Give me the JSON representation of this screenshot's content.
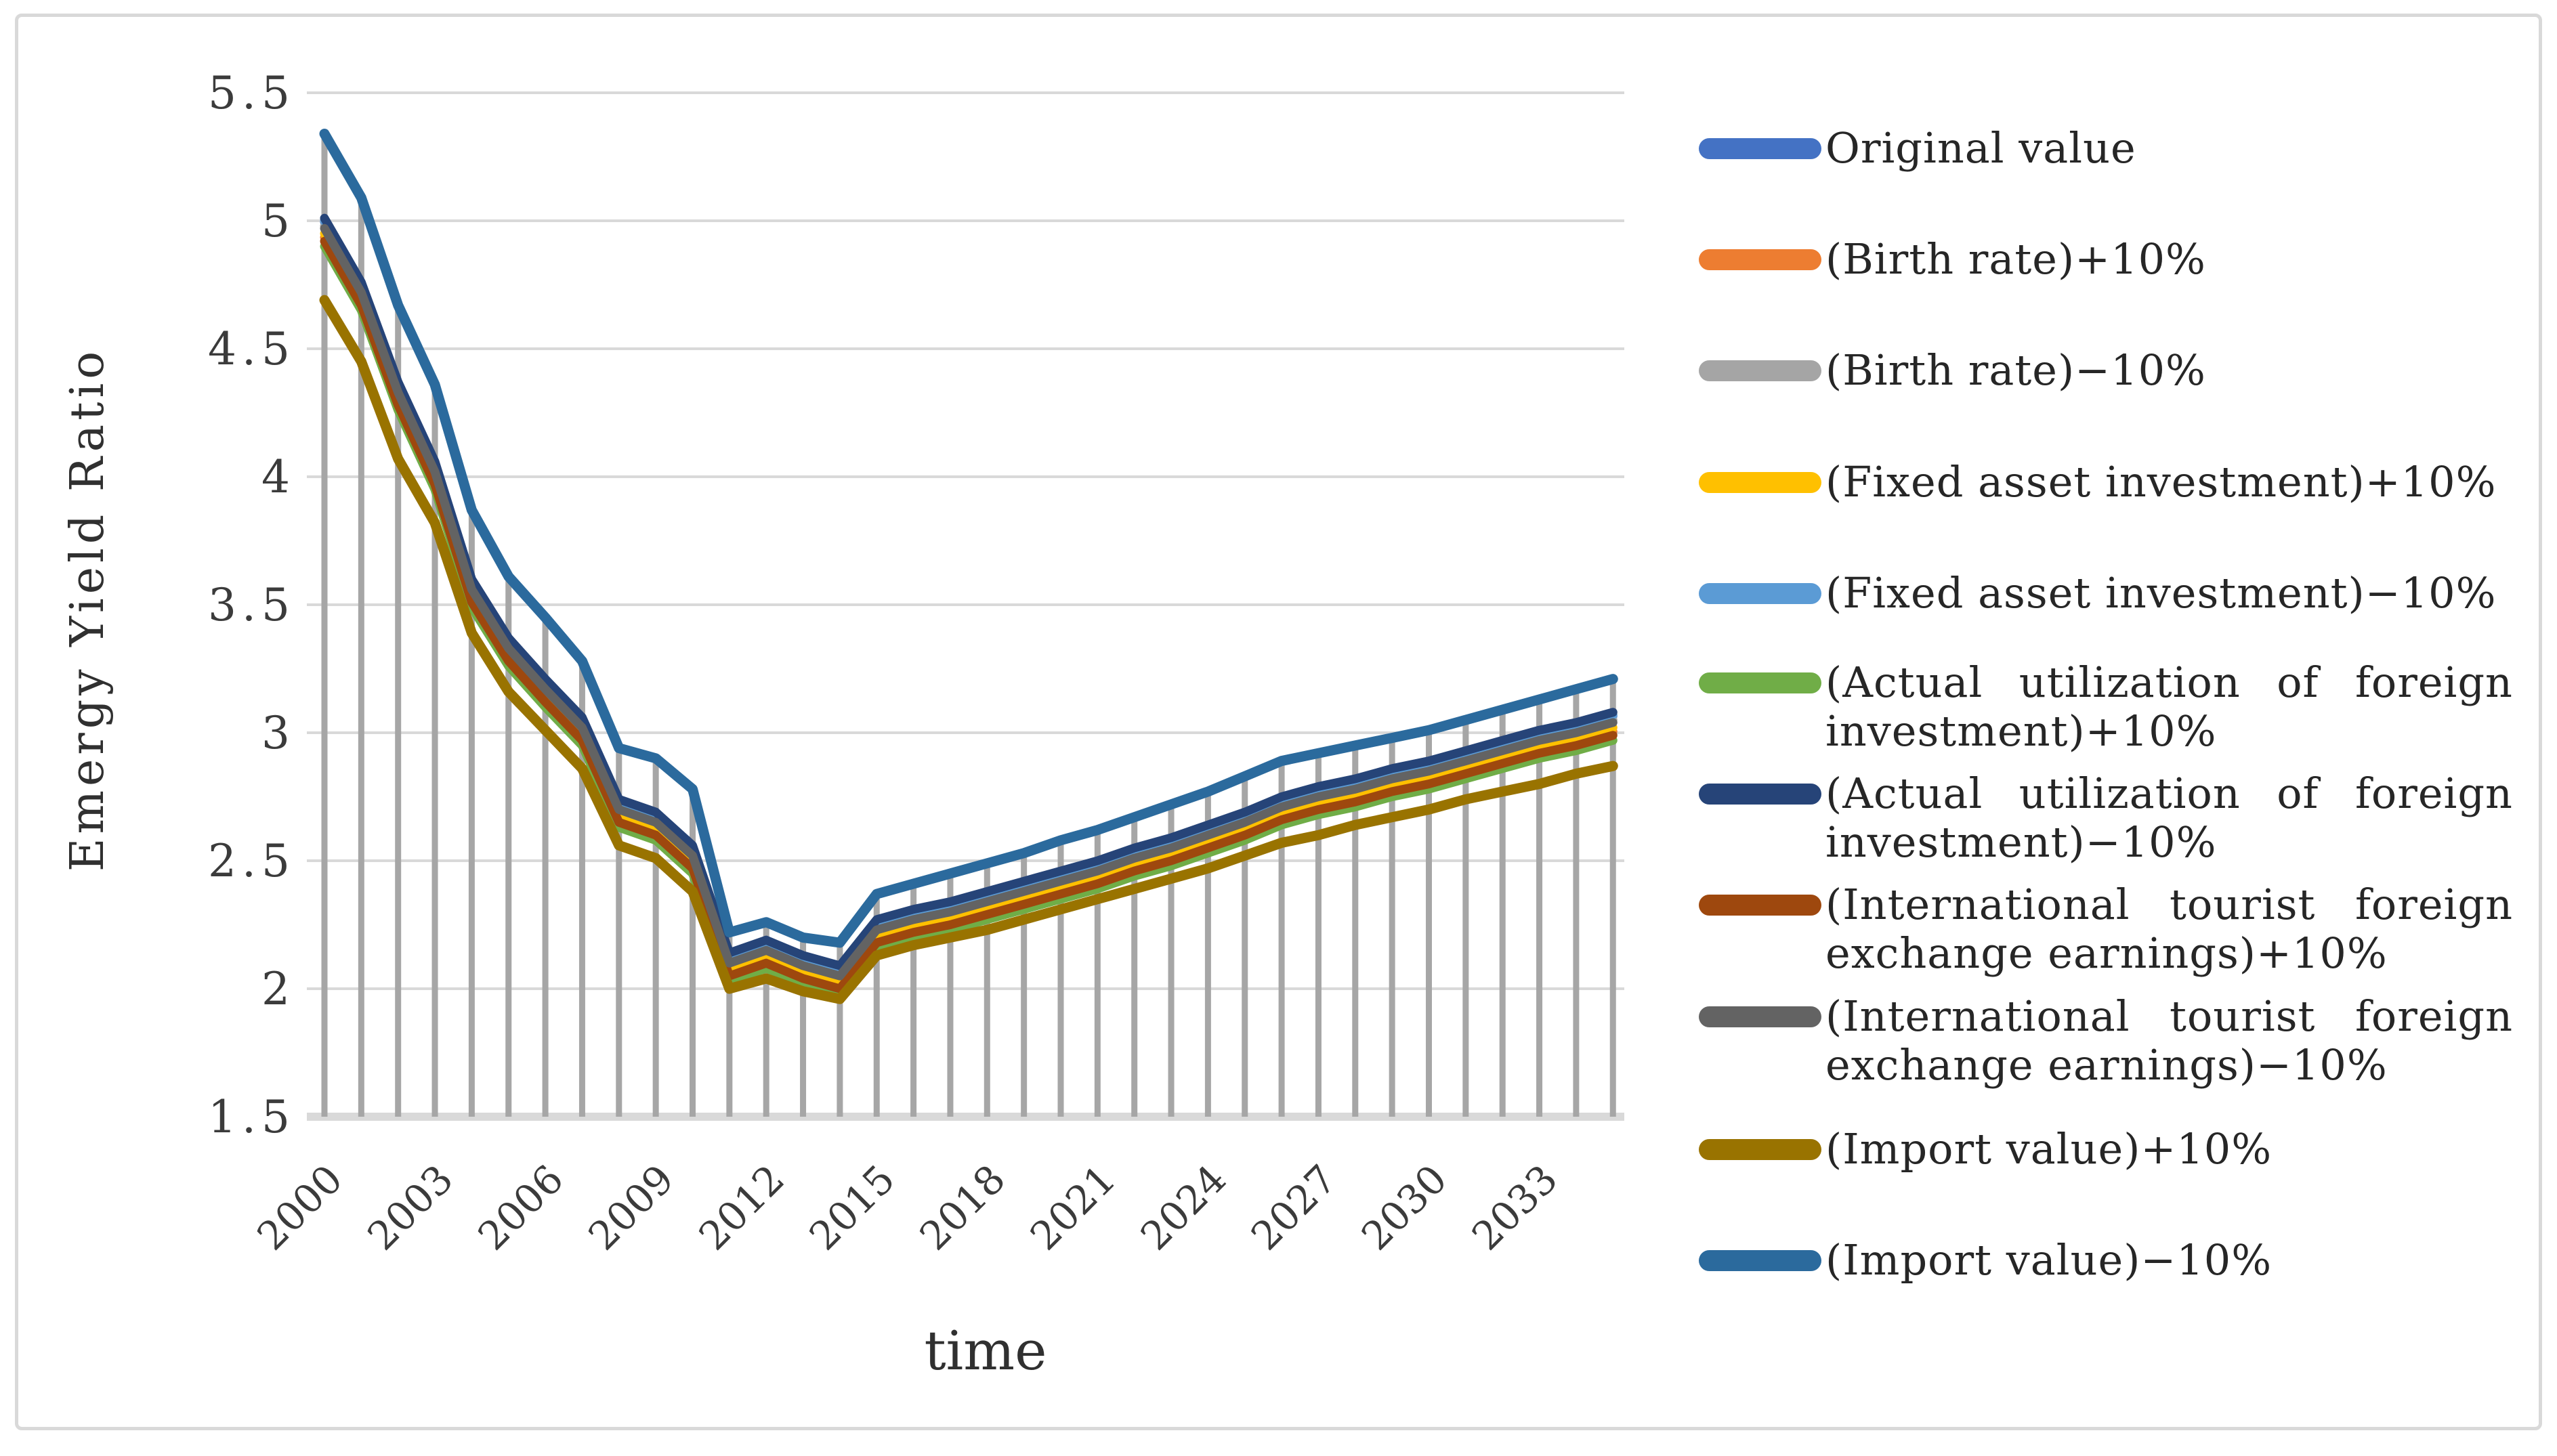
{
  "figure": {
    "background": "#FFFFFF",
    "border_color": "#D9D9D9",
    "gridline_color": "#D9D9D9",
    "dropline_color": "#A6A6A6",
    "text_color": "#262626"
  },
  "axes": {
    "y_title": "Emergy Yield Ratio",
    "x_title": "time",
    "y_ticks": [
      "1.5",
      "2",
      "2.5",
      "3",
      "3.5",
      "4",
      "4.5",
      "5",
      "5.5"
    ],
    "x_ticks": [
      "2000",
      "2003",
      "2006",
      "2009",
      "2012",
      "2015",
      "2018",
      "2021",
      "2024",
      "2027",
      "2030",
      "2033"
    ]
  },
  "chart_data": {
    "type": "line",
    "title": "",
    "xlabel": "time",
    "ylabel": "Emergy Yield Ratio",
    "ylim": [
      1.5,
      5.5
    ],
    "y_tick_step": 0.5,
    "xlim": [
      2000,
      2035
    ],
    "x_tick_step": 3,
    "grid": true,
    "droplines": true,
    "legend_position": "right",
    "x": [
      2000,
      2001,
      2002,
      2003,
      2004,
      2005,
      2006,
      2007,
      2008,
      2009,
      2010,
      2011,
      2012,
      2013,
      2014,
      2015,
      2016,
      2017,
      2018,
      2019,
      2020,
      2021,
      2022,
      2023,
      2024,
      2025,
      2026,
      2027,
      2028,
      2029,
      2030,
      2031,
      2032,
      2033,
      2034,
      2035
    ],
    "series": [
      {
        "name": "Original value",
        "color": "#4472C4",
        "width": 13,
        "values": [
          4.995,
          4.745,
          4.355,
          4.045,
          3.585,
          3.355,
          3.195,
          3.045,
          2.725,
          2.675,
          2.545,
          2.125,
          2.175,
          2.115,
          2.075,
          2.255,
          2.295,
          2.325,
          2.365,
          2.405,
          2.445,
          2.485,
          2.535,
          2.575,
          2.625,
          2.675,
          2.735,
          2.775,
          2.805,
          2.845,
          2.875,
          2.915,
          2.955,
          2.995,
          3.025,
          3.065
        ]
      },
      {
        "name": "(Birth rate)+10%",
        "color": "#ED7D31",
        "width": 13,
        "values": [
          4.935,
          4.685,
          4.295,
          3.985,
          3.525,
          3.295,
          3.135,
          2.985,
          2.665,
          2.615,
          2.485,
          2.065,
          2.115,
          2.055,
          2.015,
          2.195,
          2.235,
          2.265,
          2.305,
          2.345,
          2.385,
          2.425,
          2.475,
          2.515,
          2.565,
          2.615,
          2.675,
          2.715,
          2.745,
          2.785,
          2.815,
          2.855,
          2.895,
          2.935,
          2.965,
          3.005
        ]
      },
      {
        "name": "(Birth rate)−10%",
        "color": "#A5A5A5",
        "width": 13,
        "values": [
          4.98,
          4.73,
          4.34,
          4.03,
          3.57,
          3.34,
          3.18,
          3.03,
          2.71,
          2.66,
          2.53,
          2.11,
          2.16,
          2.1,
          2.06,
          2.24,
          2.28,
          2.31,
          2.35,
          2.39,
          2.43,
          2.47,
          2.52,
          2.56,
          2.61,
          2.66,
          2.72,
          2.76,
          2.79,
          2.83,
          2.86,
          2.9,
          2.94,
          2.98,
          3.01,
          3.05
        ]
      },
      {
        "name": "(Fixed asset investment)+10%",
        "color": "#FFC000",
        "width": 13,
        "values": [
          4.95,
          4.7,
          4.31,
          4.0,
          3.54,
          3.31,
          3.15,
          3.0,
          2.68,
          2.63,
          2.5,
          2.08,
          2.13,
          2.07,
          2.03,
          2.21,
          2.25,
          2.28,
          2.32,
          2.36,
          2.4,
          2.44,
          2.49,
          2.53,
          2.58,
          2.63,
          2.69,
          2.73,
          2.76,
          2.8,
          2.83,
          2.87,
          2.91,
          2.95,
          2.98,
          3.02
        ]
      },
      {
        "name": "(Fixed asset investment)−10%",
        "color": "#5B9BD5",
        "width": 13,
        "values": [
          5.0,
          4.75,
          4.36,
          4.05,
          3.59,
          3.36,
          3.2,
          3.05,
          2.73,
          2.68,
          2.55,
          2.13,
          2.18,
          2.12,
          2.08,
          2.26,
          2.3,
          2.33,
          2.37,
          2.41,
          2.45,
          2.49,
          2.54,
          2.58,
          2.63,
          2.68,
          2.74,
          2.78,
          2.81,
          2.85,
          2.88,
          2.92,
          2.96,
          3.0,
          3.03,
          3.07
        ]
      },
      {
        "name": "(Actual utilization of foreign investment)+10%",
        "color": "#70AD47",
        "width": 13,
        "values": [
          4.9,
          4.65,
          4.26,
          3.95,
          3.49,
          3.26,
          3.1,
          2.95,
          2.63,
          2.58,
          2.45,
          2.03,
          2.08,
          2.02,
          1.98,
          2.16,
          2.2,
          2.23,
          2.27,
          2.31,
          2.35,
          2.39,
          2.44,
          2.48,
          2.53,
          2.58,
          2.64,
          2.68,
          2.71,
          2.75,
          2.78,
          2.82,
          2.86,
          2.9,
          2.93,
          2.97
        ]
      },
      {
        "name": "(Actual utilization of foreign investment)−10%",
        "color": "#264478",
        "width": 13,
        "values": [
          5.01,
          4.76,
          4.37,
          4.06,
          3.6,
          3.37,
          3.21,
          3.06,
          2.74,
          2.69,
          2.56,
          2.14,
          2.19,
          2.13,
          2.09,
          2.27,
          2.31,
          2.34,
          2.38,
          2.42,
          2.46,
          2.5,
          2.55,
          2.59,
          2.64,
          2.69,
          2.75,
          2.79,
          2.82,
          2.86,
          2.89,
          2.93,
          2.97,
          3.01,
          3.04,
          3.08
        ]
      },
      {
        "name": "(International tourist foreign exchange earnings)+10%",
        "color": "#9E480E",
        "width": 13,
        "values": [
          4.92,
          4.67,
          4.28,
          3.97,
          3.51,
          3.28,
          3.12,
          2.97,
          2.65,
          2.6,
          2.47,
          2.05,
          2.1,
          2.04,
          2.0,
          2.18,
          2.22,
          2.25,
          2.29,
          2.33,
          2.37,
          2.41,
          2.46,
          2.5,
          2.55,
          2.6,
          2.66,
          2.7,
          2.73,
          2.77,
          2.8,
          2.84,
          2.88,
          2.92,
          2.95,
          2.99
        ]
      },
      {
        "name": "(International tourist foreign exchange earnings)−10%",
        "color": "#636363",
        "width": 13,
        "values": [
          4.97,
          4.72,
          4.33,
          4.02,
          3.56,
          3.33,
          3.17,
          3.02,
          2.7,
          2.65,
          2.52,
          2.1,
          2.15,
          2.09,
          2.05,
          2.23,
          2.27,
          2.3,
          2.34,
          2.38,
          2.42,
          2.46,
          2.51,
          2.55,
          2.6,
          2.65,
          2.71,
          2.75,
          2.78,
          2.82,
          2.85,
          2.89,
          2.93,
          2.97,
          3.0,
          3.04
        ]
      },
      {
        "name": "(Import value)+10%",
        "color": "#997300",
        "width": 15,
        "values": [
          4.69,
          4.45,
          4.07,
          3.82,
          3.39,
          3.16,
          3.01,
          2.86,
          2.56,
          2.51,
          2.38,
          2.0,
          2.04,
          1.99,
          1.96,
          2.13,
          2.17,
          2.2,
          2.23,
          2.27,
          2.31,
          2.35,
          2.39,
          2.43,
          2.47,
          2.52,
          2.57,
          2.6,
          2.64,
          2.67,
          2.7,
          2.74,
          2.77,
          2.8,
          2.84,
          2.87
        ]
      },
      {
        "name": "(Import value)−10%",
        "color": "#2B6A9D",
        "width": 15,
        "values": [
          5.34,
          5.09,
          4.67,
          4.36,
          3.87,
          3.61,
          3.45,
          3.28,
          2.94,
          2.9,
          2.78,
          2.22,
          2.26,
          2.2,
          2.18,
          2.37,
          2.41,
          2.45,
          2.49,
          2.53,
          2.58,
          2.62,
          2.67,
          2.72,
          2.77,
          2.83,
          2.89,
          2.92,
          2.95,
          2.98,
          3.01,
          3.05,
          3.09,
          3.13,
          3.17,
          3.21
        ]
      }
    ]
  },
  "legend": {
    "items": [
      {
        "lines": [
          "Original value"
        ],
        "color": "#4472C4"
      },
      {
        "lines": [
          "(Birth rate)+10%"
        ],
        "color": "#ED7D31"
      },
      {
        "lines": [
          "(Birth rate)−10%"
        ],
        "color": "#A5A5A5"
      },
      {
        "lines": [
          "(Fixed asset investment)+10%"
        ],
        "color": "#FFC000"
      },
      {
        "lines": [
          "(Fixed asset investment)−10%"
        ],
        "color": "#5B9BD5"
      },
      {
        "lines": [
          "(Actual utilization of foreign",
          "investment)+10%"
        ],
        "color": "#70AD47"
      },
      {
        "lines": [
          "(Actual utilization of foreign",
          "investment)−10%"
        ],
        "color": "#264478"
      },
      {
        "lines": [
          "(International tourist foreign",
          "exchange earnings)+10%"
        ],
        "color": "#9E480E"
      },
      {
        "lines": [
          "(International tourist foreign",
          "exchange earnings)−10%"
        ],
        "color": "#636363"
      },
      {
        "lines": [
          "(Import value)+10%"
        ],
        "color": "#997300"
      },
      {
        "lines": [
          "(Import value)−10%"
        ],
        "color": "#2B6A9D"
      }
    ]
  }
}
